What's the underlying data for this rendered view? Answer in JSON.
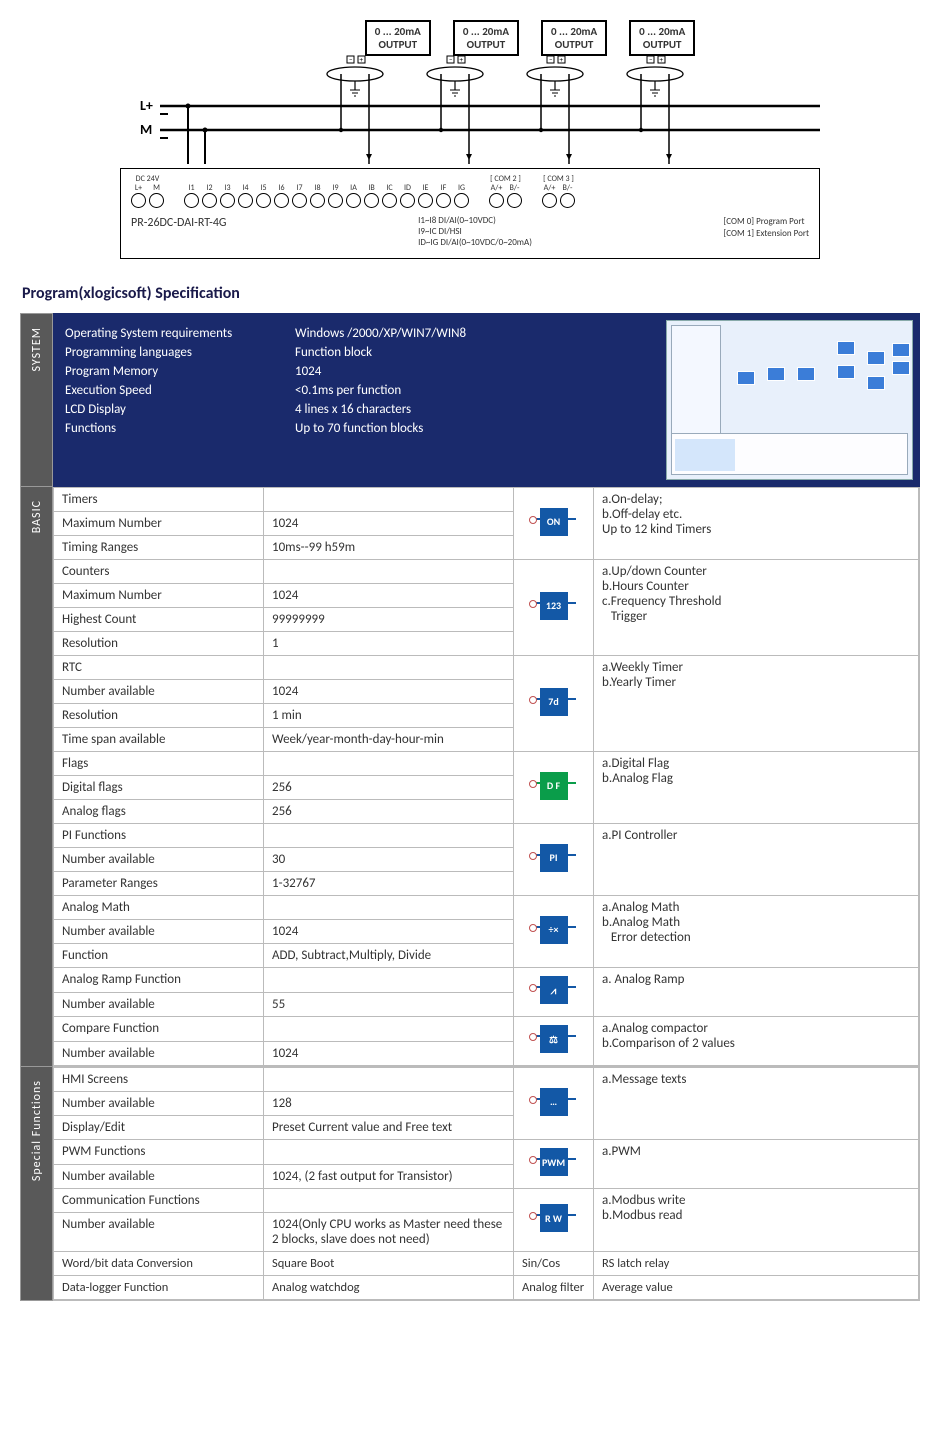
{
  "colors": {
    "dark_blue": "#1a2a6c",
    "grey_tab": "#595959",
    "icon_blue": "#1358a6",
    "icon_green": "#0a9d4a",
    "border": "#bbbbbb"
  },
  "diagram": {
    "output_label_line1": "0 ... 20mA",
    "output_label_line2": "OUTPUT",
    "output_count": 4,
    "rail_labels": [
      "L+",
      "M"
    ],
    "terminal_header_left": "DC 24V",
    "terminal_labels_power": [
      "L+",
      "M"
    ],
    "terminal_labels_inputs": [
      "I1",
      "I2",
      "I3",
      "I4",
      "I5",
      "I6",
      "I7",
      "I8",
      "I9",
      "IA",
      "IB",
      "IC",
      "ID",
      "IE",
      "IF",
      "IG"
    ],
    "com2_label": "[ COM 2 ]",
    "com2_pins": [
      "A/+",
      "B/-"
    ],
    "com3_label": "[ COM 3 ]",
    "com3_pins": [
      "A/+",
      "B/-"
    ],
    "model": "PR-26DC-DAI-RT-4G",
    "notes_center": [
      "I1~I8 DI/AI(0~10VDC)",
      "I9~IC DI/HSI",
      "ID~IG DI/AI(0~10VDC/0~20mA)"
    ],
    "notes_right": [
      "[COM 0] Program Port",
      "[COM 1] Extension Port"
    ]
  },
  "title": "Program(xlogicsoft) Specification",
  "tabs": {
    "system": "SYSTEM",
    "basic": "BASIC",
    "special": "Special Functions"
  },
  "system": [
    {
      "k": "Operating System requirements",
      "v": "Windows /2000/XP/WIN7/WIN8"
    },
    {
      "k": "Programming languages",
      "v": "Function block"
    },
    {
      "k": "Program Memory",
      "v": "1024"
    },
    {
      "k": "Execution Speed",
      "v": "<0.1ms per function"
    },
    {
      "k": "LCD Display",
      "v": "4 lines x 16 characters"
    },
    {
      "k": "Functions",
      "v": "Up to 70 function blocks"
    }
  ],
  "basic": {
    "timers": {
      "hdr": "Timers",
      "rows": [
        {
          "k": "Maximum Number",
          "v": "1024"
        },
        {
          "k": "Timing Ranges",
          "v": "10ms--99 h59m"
        }
      ],
      "icon_text": "ON",
      "desc": [
        "a.On-delay;",
        "b.Off-delay etc.",
        "Up to 12 kind Timers"
      ]
    },
    "counters": {
      "hdr": "Counters",
      "rows": [
        {
          "k": "Maximum Number",
          "v": "1024"
        },
        {
          "k": "Highest Count",
          "v": "99999999"
        },
        {
          "k": "Resolution",
          "v": "1"
        }
      ],
      "icon_text": "123",
      "desc": [
        "a.Up/down Counter",
        "b.Hours Counter",
        "c.Frequency Threshold",
        "   Trigger"
      ]
    },
    "rtc": {
      "hdr": "RTC",
      "rows": [
        {
          "k": "Number available",
          "v": "1024"
        },
        {
          "k": "Resolution",
          "v": "1 min"
        },
        {
          "k": "Time span available",
          "v": "Week/year-month-day-hour-min"
        }
      ],
      "icon_text": "7d",
      "desc": [
        "a.Weekly Timer",
        "b.Yearly Timer"
      ]
    },
    "flags": {
      "hdr": "Flags",
      "rows": [
        {
          "k": "Digital flags",
          "v": "256"
        },
        {
          "k": "Analog flags",
          "v": "256"
        }
      ],
      "icon_text": "D F",
      "icon_class": "green",
      "desc": [
        "a.Digital Flag",
        "b.Analog Flag"
      ]
    },
    "pi": {
      "hdr": "PI Functions",
      "rows": [
        {
          "k": "Number available",
          "v": "30"
        },
        {
          "k": "Parameter Ranges",
          "v": "1-32767"
        }
      ],
      "icon_text": "PI",
      "desc": [
        "a.PI Controller"
      ]
    },
    "math": {
      "hdr": "Analog Math",
      "rows": [
        {
          "k": "Number available",
          "v": "1024"
        },
        {
          "k": "Function",
          "v": "ADD, Subtract,Multiply, Divide"
        }
      ],
      "icon_text": "÷×",
      "desc": [
        "a.Analog Math",
        "b.Analog Math",
        "   Error detection"
      ]
    },
    "ramp": {
      "hdr": "Analog Ramp Function",
      "rows": [
        {
          "k": "Number available",
          "v": "55"
        }
      ],
      "icon_text": "⩘",
      "desc": [
        "a. Analog Ramp"
      ]
    },
    "compare": {
      "hdr": "Compare Function",
      "rows": [
        {
          "k": "Number available",
          "v": "1024"
        }
      ],
      "icon_text": "⚖",
      "desc": [
        "a.Analog compactor",
        "b.Comparison of 2 values"
      ]
    }
  },
  "special": {
    "hmi": {
      "hdr": "HMI Screens",
      "rows": [
        {
          "k": "Number available",
          "v": "128"
        },
        {
          "k": "Display/Edit",
          "v": "Preset Current value and Free text"
        }
      ],
      "icon_text": "…",
      "desc": [
        "a.Message texts"
      ]
    },
    "pwm": {
      "hdr": "PWM Functions",
      "rows": [
        {
          "k": "Number available",
          "v": "1024,      (2 fast output for Transistor)"
        }
      ],
      "icon_text": "PWM",
      "desc": [
        "a.PWM"
      ]
    },
    "comm": {
      "hdr": "Communication Functions",
      "rows": [
        {
          "k": "Number available",
          "v": "1024(Only CPU works as Master need these 2 blocks, slave does not need)"
        }
      ],
      "icon_text": "R W",
      "desc": [
        "a.Modbus write",
        "b.Modbus read"
      ]
    },
    "bottom": [
      [
        "Word/bit data Conversion",
        "Square Boot",
        "Sin/Cos",
        "RS latch relay"
      ],
      [
        "Data-logger Function",
        "Analog watchdog",
        "Analog filter",
        "Average value"
      ]
    ]
  }
}
